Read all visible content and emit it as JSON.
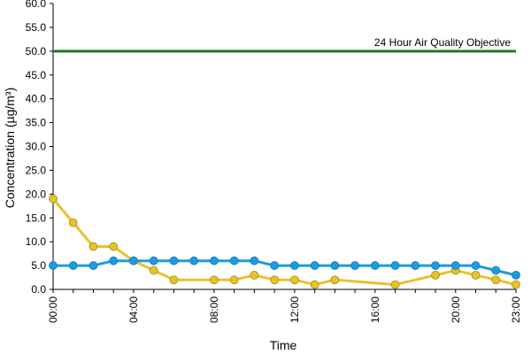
{
  "chart_data": {
    "type": "line",
    "title": "",
    "xlabel": "Time",
    "ylabel": "Concentration (µg/m³)",
    "ylim": [
      0,
      60
    ],
    "yticks": [
      "0.0",
      "5.0",
      "10.0",
      "15.0",
      "20.0",
      "25.0",
      "30.0",
      "35.0",
      "40.0",
      "45.0",
      "50.0",
      "55.0",
      "60.0"
    ],
    "x": [
      0,
      1,
      2,
      3,
      4,
      5,
      6,
      7,
      8,
      9,
      10,
      11,
      12,
      13,
      14,
      15,
      16,
      17,
      18,
      19,
      20,
      21,
      22,
      23
    ],
    "xticks": [
      {
        "x": 0,
        "label": "00:00"
      },
      {
        "x": 4,
        "label": "04:00"
      },
      {
        "x": 8,
        "label": "08:00"
      },
      {
        "x": 12,
        "label": "12:00"
      },
      {
        "x": 16,
        "label": "16:00"
      },
      {
        "x": 20,
        "label": "20:00"
      },
      {
        "x": 23,
        "label": "23:00"
      }
    ],
    "series": [
      {
        "color": "#1e9be0",
        "values": [
          5,
          5,
          5,
          6,
          6,
          6,
          6,
          6,
          6,
          6,
          6,
          5,
          5,
          5,
          5,
          5,
          5,
          5,
          5,
          5,
          5,
          5,
          4,
          3
        ]
      },
      {
        "color": "#e8c22e",
        "values": [
          19,
          14,
          9,
          9,
          6,
          4,
          2,
          null,
          2,
          2,
          3,
          2,
          2,
          1,
          2,
          null,
          null,
          1,
          null,
          3,
          4,
          3,
          2,
          1
        ]
      }
    ],
    "reference_line": {
      "value": 50,
      "label": "24 Hour Air Quality Objective",
      "color": "#1f7a1f"
    },
    "grid": false
  }
}
